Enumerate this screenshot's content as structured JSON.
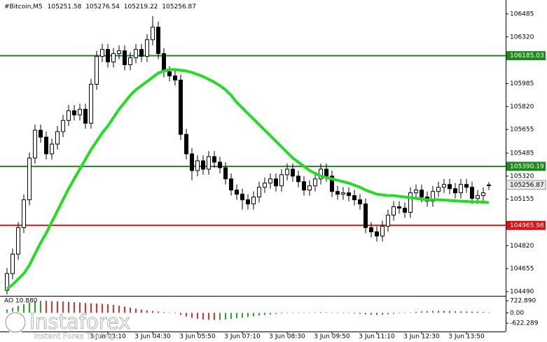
{
  "chart_data": [
    {
      "type": "candlestick",
      "title": "#Bitcoin,M5",
      "categories": [
        null,
        null,
        null,
        null,
        null,
        null,
        null,
        null,
        null,
        null,
        null,
        null,
        null,
        null,
        null,
        null,
        null,
        null,
        "3 Jun 03:10",
        null,
        null,
        null,
        null,
        null,
        null,
        null,
        "3 Jun 04:30",
        null,
        null,
        null,
        null,
        null,
        null,
        null,
        "3 Jun 05:50",
        null,
        null,
        null,
        null,
        null,
        null,
        null,
        "3 Jun 07:10",
        null,
        null,
        null,
        null,
        null,
        null,
        null,
        "3 Jun 08:30",
        null,
        null,
        null,
        null,
        null,
        null,
        null,
        "3 Jun 09:50",
        null,
        null,
        null,
        null,
        null,
        null,
        null,
        "3 Jun 11:10",
        null,
        null,
        null,
        null,
        null,
        null,
        null,
        "3 Jun 12:30",
        null,
        null,
        null,
        null,
        null,
        null,
        null,
        "3 Jun 13:50",
        null,
        null,
        null,
        null
      ],
      "open": [
        104500,
        104620,
        104760,
        104950,
        105150,
        105450,
        105650,
        105600,
        105480,
        105550,
        105640,
        105720,
        105790,
        105760,
        105800,
        105700,
        105980,
        106180,
        106230,
        106140,
        106200,
        106220,
        106120,
        106170,
        106230,
        106180,
        106300,
        106390,
        106200,
        106070,
        106040,
        106010,
        105620,
        105480,
        105360,
        105430,
        105370,
        105460,
        105420,
        105380,
        105300,
        105220,
        105190,
        105150,
        105120,
        105170,
        105240,
        105270,
        105300,
        105250,
        105330,
        105370,
        105320,
        105280,
        105220,
        105250,
        105300,
        105370,
        105320,
        105210,
        105190,
        105200,
        105180,
        105150,
        105120,
        104950,
        104920,
        104890,
        104960,
        105040,
        105100,
        105090,
        105060,
        105200,
        105220,
        105170,
        105140,
        105210,
        105240,
        105260,
        105230,
        105200,
        105260,
        105240,
        105160,
        105180,
        105251.58
      ],
      "high": [
        104660,
        104800,
        104990,
        105190,
        105490,
        105690,
        105690,
        105640,
        105590,
        105680,
        105760,
        105830,
        105830,
        105840,
        105840,
        106020,
        106220,
        106270,
        106270,
        106240,
        106260,
        106260,
        106210,
        106270,
        106270,
        106340,
        106470,
        106430,
        106240,
        106110,
        106080,
        106050,
        105660,
        105520,
        105470,
        105470,
        105500,
        105500,
        105460,
        105420,
        105340,
        105260,
        105230,
        105190,
        105210,
        105280,
        105310,
        105340,
        105340,
        105370,
        105410,
        105410,
        105360,
        105320,
        105290,
        105340,
        105410,
        105410,
        105360,
        105250,
        105240,
        105240,
        105220,
        105190,
        105160,
        104990,
        104960,
        105000,
        105080,
        105140,
        105140,
        105130,
        105240,
        105260,
        105260,
        105210,
        105250,
        105280,
        105300,
        105300,
        105270,
        105300,
        105300,
        105280,
        105220,
        105240,
        105276.54
      ],
      "low": [
        104470,
        104580,
        104720,
        104910,
        105110,
        105410,
        105560,
        105440,
        105440,
        105510,
        105600,
        105680,
        105720,
        105720,
        105660,
        105660,
        105940,
        106140,
        106100,
        106100,
        106160,
        106080,
        106080,
        106130,
        106140,
        106140,
        106260,
        106160,
        106030,
        106000,
        105970,
        105580,
        105440,
        105290,
        105320,
        105330,
        105330,
        105380,
        105340,
        105260,
        105180,
        105150,
        105080,
        105080,
        105080,
        105130,
        105200,
        105230,
        105210,
        105210,
        105290,
        105280,
        105240,
        105180,
        105180,
        105210,
        105260,
        105280,
        105170,
        105150,
        105150,
        105140,
        105110,
        105080,
        104910,
        104880,
        104850,
        104850,
        104920,
        105000,
        105050,
        105020,
        105020,
        105160,
        105130,
        105100,
        105100,
        105170,
        105200,
        105190,
        105160,
        105160,
        105200,
        105120,
        105120,
        105140,
        105219.22
      ],
      "close": [
        104620,
        104760,
        104950,
        105150,
        105450,
        105650,
        105600,
        105480,
        105550,
        105640,
        105720,
        105790,
        105760,
        105800,
        105700,
        105980,
        106180,
        106230,
        106140,
        106200,
        106220,
        106120,
        106170,
        106230,
        106180,
        106300,
        106390,
        106200,
        106070,
        106040,
        106010,
        105620,
        105480,
        105360,
        105430,
        105370,
        105460,
        105420,
        105380,
        105300,
        105220,
        105190,
        105150,
        105120,
        105170,
        105240,
        105270,
        105300,
        105250,
        105330,
        105370,
        105320,
        105280,
        105220,
        105250,
        105300,
        105370,
        105320,
        105210,
        105190,
        105200,
        105180,
        105150,
        105120,
        104950,
        104920,
        104890,
        104960,
        105040,
        105100,
        105090,
        105060,
        105200,
        105220,
        105170,
        105140,
        105210,
        105240,
        105260,
        105230,
        105200,
        105260,
        105240,
        105160,
        105180,
        105200,
        105256.87
      ],
      "ma": {
        "color": "#22dd22",
        "values": [
          104510,
          104540,
          104580,
          104620,
          104680,
          104760,
          104840,
          104910,
          104990,
          105070,
          105150,
          105230,
          105300,
          105370,
          105440,
          105510,
          105570,
          105630,
          105680,
          105740,
          105800,
          105850,
          105900,
          105940,
          105970,
          106000,
          106030,
          106060,
          106075,
          106085,
          106085,
          106080,
          106075,
          106065,
          106050,
          106035,
          106015,
          105995,
          105970,
          105940,
          105900,
          105850,
          105810,
          105770,
          105730,
          105690,
          105650,
          105610,
          105570,
          105530,
          105490,
          105450,
          105420,
          105390,
          105360,
          105340,
          105320,
          105310,
          105300,
          105290,
          105280,
          105270,
          105255,
          105240,
          105220,
          105205,
          105190,
          105185,
          105180,
          105180,
          105175,
          105170,
          105165,
          105160,
          105155,
          105150,
          105150,
          105150,
          105148,
          105145,
          105142,
          105140,
          105138,
          105135,
          105135,
          105133,
          105130
        ]
      },
      "levels": [
        {
          "value": 106185.03,
          "color": "#1a8a1a"
        },
        {
          "value": 105390.19,
          "color": "#1a8a1a"
        },
        {
          "value": 104965.98,
          "color": "#e01010"
        }
      ],
      "ylim": [
        104465,
        106560
      ],
      "yticks": [
        104490,
        104655,
        104820,
        105155,
        105320,
        105485,
        105655,
        105820,
        105985,
        106320,
        106485
      ]
    },
    {
      "type": "bar",
      "title": "AO 10.880",
      "up_color": "#2aa52a",
      "down_color": "#e03030",
      "values": [
        200,
        300,
        420,
        520,
        610,
        680,
        720,
        715,
        700,
        690,
        680,
        660,
        640,
        620,
        590,
        570,
        560,
        540,
        520,
        480,
        430,
        380,
        320,
        260,
        200,
        150,
        110,
        80,
        40,
        10,
        -30,
        -120,
        -220,
        -300,
        -360,
        -400,
        -420,
        -430,
        -420,
        -400,
        -370,
        -330,
        -290,
        -250,
        -210,
        -170,
        -130,
        -100,
        -70,
        -40,
        -20,
        -10,
        0,
        10,
        20,
        30,
        40,
        30,
        20,
        10,
        0,
        -20,
        -40,
        -60,
        -90,
        -110,
        -120,
        -110,
        -90,
        -60,
        -30,
        0,
        30,
        60,
        90,
        110,
        120,
        125,
        120,
        110,
        100,
        90,
        80,
        70,
        60,
        50,
        10.88
      ],
      "ylim": [
        -1120,
        980
      ],
      "yticks": [
        {
          "value": 722.89,
          "label": "722.890"
        },
        {
          "value": 0,
          "label": "0.00"
        },
        -622.289
      ]
    }
  ],
  "watermark": {
    "brand": "instaforex",
    "tagline": "Instant Forex Trading"
  }
}
